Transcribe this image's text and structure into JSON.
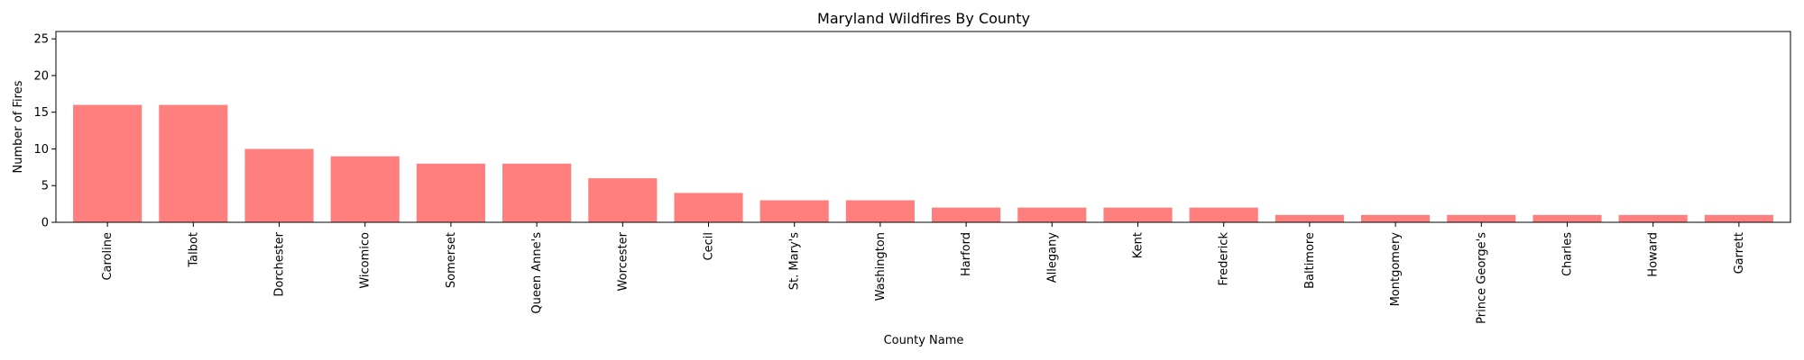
{
  "chart_data": {
    "type": "bar",
    "title": "Maryland Wildfires By County",
    "xlabel": "County Name",
    "ylabel": "Number of Fires",
    "categories": [
      "Caroline",
      "Talbot",
      "Dorchester",
      "Wicomico",
      "Somerset",
      "Queen Anne's",
      "Worcester",
      "Cecil",
      "St. Mary's",
      "Washington",
      "Harford",
      "Allegany",
      "Kent",
      "Frederick",
      "Baltimore",
      "Montgomery",
      "Prince George's",
      "Charles",
      "Howard",
      "Garrett"
    ],
    "values": [
      16,
      16,
      10,
      9,
      8,
      8,
      6,
      4,
      3,
      3,
      2,
      2,
      2,
      2,
      1,
      1,
      1,
      1,
      1,
      1
    ],
    "ylim": [
      0,
      26
    ],
    "yticks": [
      0,
      5,
      10,
      15,
      20,
      25
    ],
    "bar_color": "#ff7f7f",
    "grid": false,
    "legend": "none"
  }
}
